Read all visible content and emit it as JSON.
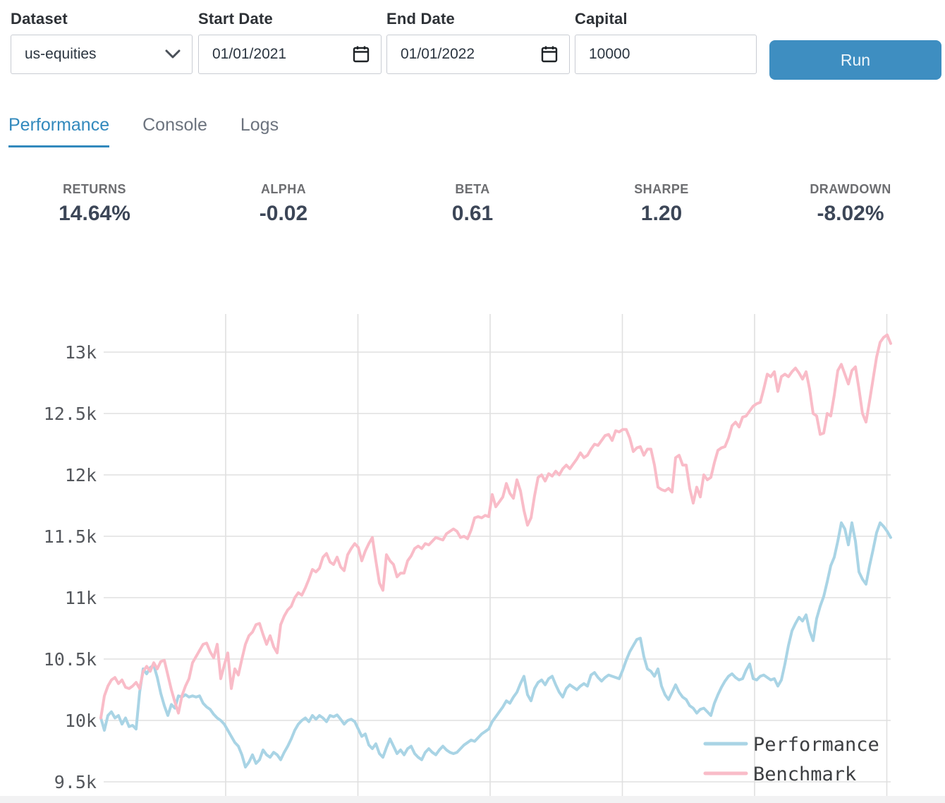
{
  "form": {
    "dataset": {
      "label": "Dataset",
      "value": "us-equities"
    },
    "start_date": {
      "label": "Start Date",
      "value": "01/01/2021"
    },
    "end_date": {
      "label": "End Date",
      "value": "01/01/2022"
    },
    "capital": {
      "label": "Capital",
      "value": "10000"
    },
    "run_label": "Run"
  },
  "tabs": [
    {
      "label": "Performance",
      "active": true
    },
    {
      "label": "Console",
      "active": false
    },
    {
      "label": "Logs",
      "active": false
    }
  ],
  "stats": [
    {
      "label": "RETURNS",
      "value": "14.64%"
    },
    {
      "label": "ALPHA",
      "value": "-0.02"
    },
    {
      "label": "BETA",
      "value": "0.61"
    },
    {
      "label": "SHARPE",
      "value": "1.20"
    },
    {
      "label": "DRAWDOWN",
      "value": "-8.02%"
    }
  ],
  "colors": {
    "accent": "#3289bd",
    "run_button": "#3e8ec1",
    "performance_line": "#a9d4e5",
    "benchmark_line": "#f9bcc8",
    "grid": "#e0e0e0",
    "tick_text": "#54575c"
  },
  "chart_data": {
    "type": "line",
    "title": "",
    "xlabel": "",
    "ylabel": "",
    "grid": true,
    "legend_position": "lower right",
    "ylim": [
      9385,
      13310
    ],
    "yticks": [
      {
        "label": "9.5k",
        "value": 9500
      },
      {
        "label": "10k",
        "value": 10000
      },
      {
        "label": "10.5k",
        "value": 10500
      },
      {
        "label": "11k",
        "value": 11000
      },
      {
        "label": "11.5k",
        "value": 11500
      },
      {
        "label": "12k",
        "value": 12000
      },
      {
        "label": "12.5k",
        "value": 12500
      },
      {
        "label": "13k",
        "value": 13000
      }
    ],
    "x_description": "trading days 01/01/2021 - 01/01/2022, evenly spaced",
    "series": [
      {
        "name": "Performance",
        "color": "#a9d4e5",
        "values": [
          10020,
          9920,
          10040,
          10070,
          10020,
          10040,
          9970,
          10020,
          9950,
          9960,
          9930,
          10230,
          10420,
          10380,
          10430,
          10450,
          10350,
          10220,
          10120,
          10040,
          10130,
          10100,
          10200,
          10190,
          10210,
          10190,
          10200,
          10190,
          10200,
          10140,
          10110,
          10090,
          10050,
          10020,
          10000,
          9970,
          9920,
          9870,
          9820,
          9790,
          9720,
          9620,
          9660,
          9720,
          9650,
          9680,
          9760,
          9720,
          9700,
          9740,
          9720,
          9680,
          9740,
          9790,
          9850,
          9920,
          9970,
          10000,
          10020,
          9990,
          10040,
          10010,
          10040,
          10020,
          9990,
          10040,
          10030,
          10045,
          10010,
          9970,
          10000,
          10010,
          9990,
          9930,
          9870,
          9890,
          9800,
          9770,
          9810,
          9730,
          9700,
          9780,
          9850,
          9790,
          9730,
          9760,
          9720,
          9770,
          9790,
          9730,
          9700,
          9680,
          9740,
          9770,
          9740,
          9720,
          9760,
          9790,
          9760,
          9740,
          9730,
          9740,
          9770,
          9800,
          9820,
          9840,
          9830,
          9860,
          9890,
          9910,
          9930,
          9990,
          10030,
          10070,
          10110,
          10160,
          10140,
          10190,
          10230,
          10300,
          10360,
          10210,
          10160,
          10260,
          10310,
          10330,
          10290,
          10340,
          10360,
          10290,
          10230,
          10190,
          10260,
          10290,
          10270,
          10250,
          10280,
          10300,
          10280,
          10370,
          10390,
          10350,
          10320,
          10350,
          10370,
          10360,
          10350,
          10340,
          10410,
          10490,
          10560,
          10610,
          10660,
          10670,
          10520,
          10420,
          10400,
          10360,
          10420,
          10280,
          10210,
          10170,
          10230,
          10290,
          10230,
          10190,
          10170,
          10120,
          10100,
          10060,
          10090,
          10100,
          10070,
          10040,
          10140,
          10210,
          10270,
          10320,
          10360,
          10380,
          10350,
          10330,
          10340,
          10410,
          10460,
          10340,
          10330,
          10360,
          10370,
          10350,
          10330,
          10340,
          10280,
          10330,
          10460,
          10610,
          10730,
          10790,
          10840,
          10810,
          10860,
          10730,
          10650,
          10830,
          10930,
          11010,
          11130,
          11260,
          11330,
          11460,
          11610,
          11560,
          11430,
          11610,
          11460,
          11210,
          11150,
          11110,
          11260,
          11390,
          11530,
          11610,
          11580,
          11540,
          11490
        ]
      },
      {
        "name": "Benchmark",
        "color": "#f9bcc8",
        "values": [
          10020,
          10200,
          10280,
          10330,
          10350,
          10300,
          10330,
          10270,
          10260,
          10280,
          10310,
          10260,
          10400,
          10440,
          10400,
          10470,
          10420,
          10480,
          10490,
          10370,
          10250,
          10150,
          10060,
          10200,
          10280,
          10340,
          10470,
          10520,
          10570,
          10620,
          10630,
          10560,
          10510,
          10620,
          10340,
          10450,
          10550,
          10260,
          10420,
          10370,
          10500,
          10620,
          10690,
          10720,
          10780,
          10790,
          10700,
          10620,
          10690,
          10600,
          10550,
          10780,
          10850,
          10900,
          10930,
          11000,
          11040,
          11020,
          11080,
          11150,
          11230,
          11210,
          11240,
          11330,
          11360,
          11290,
          11270,
          11330,
          11250,
          11220,
          11350,
          11400,
          11440,
          11410,
          11300,
          11380,
          11440,
          11490,
          11300,
          11120,
          11060,
          11350,
          11300,
          11270,
          11170,
          11200,
          11200,
          11300,
          11340,
          11400,
          11420,
          11400,
          11440,
          11430,
          11460,
          11490,
          11480,
          11470,
          11520,
          11540,
          11560,
          11540,
          11490,
          11500,
          11480,
          11550,
          11650,
          11660,
          11650,
          11670,
          11660,
          11840,
          11740,
          11780,
          11820,
          11930,
          11850,
          11810,
          11960,
          11870,
          11710,
          11590,
          11650,
          11830,
          11980,
          12000,
          11950,
          12010,
          11990,
          12030,
          12000,
          12050,
          12080,
          12050,
          12090,
          12130,
          12180,
          12140,
          12160,
          12210,
          12250,
          12240,
          12280,
          12320,
          12330,
          12280,
          12360,
          12350,
          12370,
          12370,
          12300,
          12190,
          12220,
          12230,
          12160,
          12210,
          12210,
          12080,
          11900,
          11880,
          11870,
          11890,
          11860,
          12140,
          12160,
          12080,
          12080,
          11890,
          11770,
          11900,
          11820,
          12000,
          11960,
          11980,
          12100,
          12200,
          12220,
          12230,
          12300,
          12400,
          12430,
          12390,
          12470,
          12480,
          12520,
          12560,
          12580,
          12590,
          12700,
          12820,
          12800,
          12840,
          12680,
          12800,
          12820,
          12800,
          12840,
          12870,
          12830,
          12780,
          12840,
          12700,
          12500,
          12480,
          12330,
          12340,
          12500,
          12480,
          12650,
          12850,
          12900,
          12820,
          12740,
          12850,
          12880,
          12700,
          12500,
          12430,
          12600,
          12780,
          12960,
          13080,
          13120,
          13140,
          13070
        ]
      }
    ]
  }
}
